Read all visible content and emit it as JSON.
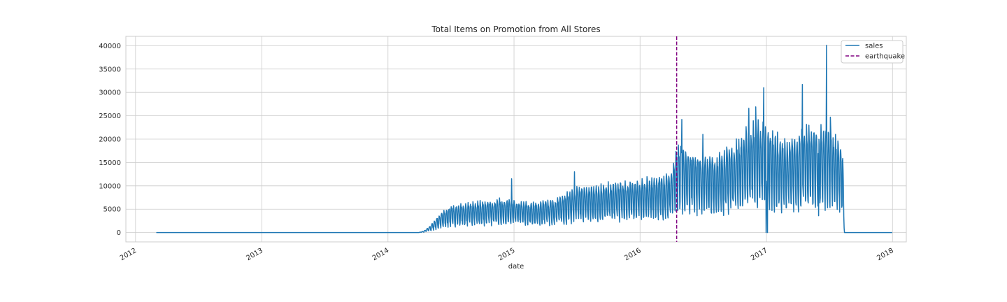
{
  "chart_data": {
    "type": "line",
    "title": "Total Items on Promotion from All Stores",
    "xlabel": "date",
    "ylabel": "",
    "grid": true,
    "legend_position": "top-right",
    "x_ticks": [
      "2012",
      "2013",
      "2014",
      "2015",
      "2016",
      "2017",
      "2018"
    ],
    "y_ticks": [
      "0",
      "5000",
      "10000",
      "15000",
      "20000",
      "25000",
      "30000",
      "35000",
      "40000"
    ],
    "xlim": [
      "2011-12-04",
      "2018-02-10"
    ],
    "ylim": [
      -2000,
      42000
    ],
    "series": [
      {
        "name": "sales",
        "color": "#1f77b4",
        "keypoints": [
          [
            "2012-03-01",
            0
          ],
          [
            "2014-03-31",
            0
          ],
          [
            "2014-04-15",
            200
          ],
          [
            "2014-05-01",
            800
          ],
          [
            "2014-06-01",
            2500
          ],
          [
            "2014-07-01",
            3500
          ],
          [
            "2014-09-01",
            4000
          ],
          [
            "2014-12-01",
            4500
          ],
          [
            "2015-01-01",
            4200
          ],
          [
            "2015-03-01",
            4000
          ],
          [
            "2015-05-01",
            4500
          ],
          [
            "2015-07-01",
            6000
          ],
          [
            "2015-10-01",
            6500
          ],
          [
            "2016-01-01",
            7000
          ],
          [
            "2016-04-01",
            8000
          ],
          [
            "2016-04-20",
            12000
          ],
          [
            "2016-06-01",
            11000
          ],
          [
            "2016-08-01",
            10000
          ],
          [
            "2016-10-01",
            12000
          ],
          [
            "2016-12-01",
            15000
          ],
          [
            "2017-01-01",
            14000
          ],
          [
            "2017-03-01",
            12000
          ],
          [
            "2017-05-01",
            14000
          ],
          [
            "2017-07-01",
            14000
          ],
          [
            "2017-08-10",
            11000
          ],
          [
            "2017-08-15",
            0
          ],
          [
            "2017-12-31",
            0
          ]
        ],
        "spikes": [
          [
            "2014-12-25",
            11500
          ],
          [
            "2015-06-25",
            13000
          ],
          [
            "2016-05-01",
            24200
          ],
          [
            "2016-07-01",
            21000
          ],
          [
            "2016-11-11",
            26600
          ],
          [
            "2016-12-01",
            26900
          ],
          [
            "2016-12-24",
            31000
          ],
          [
            "2016-12-31",
            0
          ],
          [
            "2017-01-04",
            0
          ],
          [
            "2017-04-15",
            31700
          ],
          [
            "2017-06-01",
            3600
          ],
          [
            "2017-06-24",
            40100
          ],
          [
            "2017-07-05",
            24700
          ]
        ]
      },
      {
        "name": "earthquake",
        "color": "#800080",
        "style": "dashed",
        "x": "2016-04-16"
      }
    ]
  }
}
